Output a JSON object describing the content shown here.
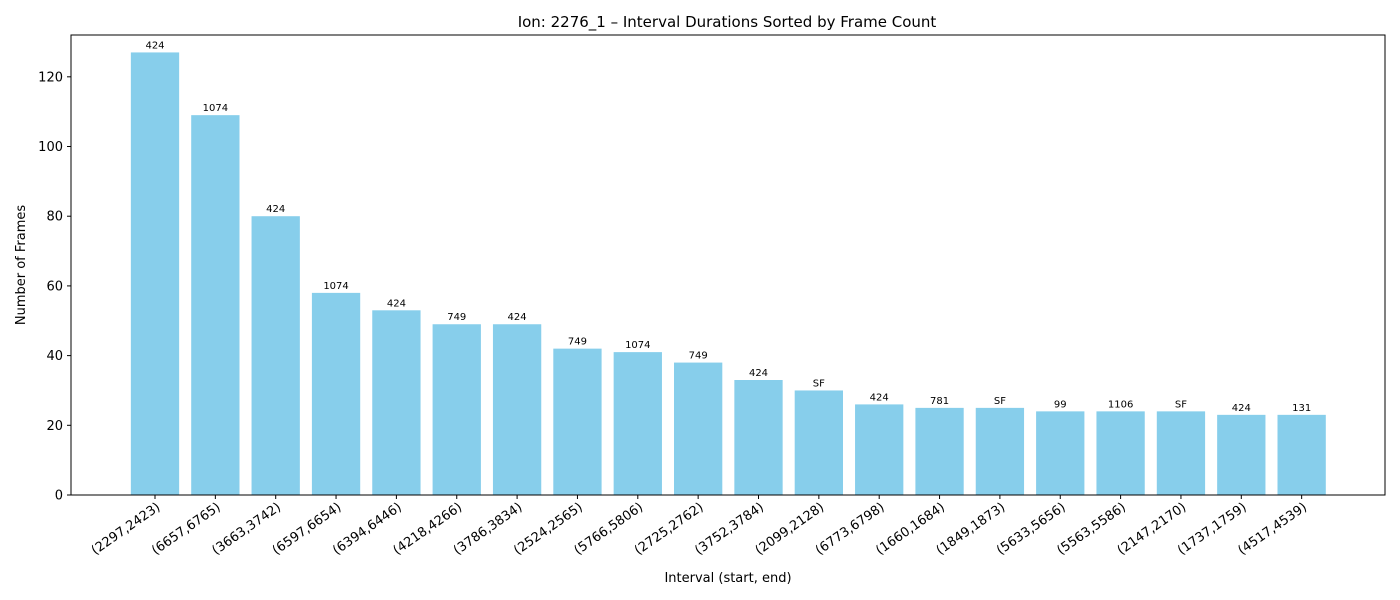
{
  "chart_data": {
    "type": "bar",
    "title": "Ion: 2276_1 – Interval Durations Sorted by Frame Count",
    "xlabel": "Interval (start, end)",
    "ylabel": "Number of Frames",
    "ylim": [
      0,
      132
    ],
    "yticks": [
      0,
      20,
      40,
      60,
      80,
      100,
      120
    ],
    "bar_color": "#87ceeb",
    "grid": false,
    "categories": [
      "(2297,2423)",
      "(6657,6765)",
      "(3663,3742)",
      "(6597,6654)",
      "(6394,6446)",
      "(4218,4266)",
      "(3786,3834)",
      "(2524,2565)",
      "(5766,5806)",
      "(2725,2762)",
      "(3752,3784)",
      "(2099,2128)",
      "(6773,6798)",
      "(1660,1684)",
      "(1849,1873)",
      "(5633,5656)",
      "(5563,5586)",
      "(2147,2170)",
      "(1737,1759)",
      "(4517,4539)"
    ],
    "values": [
      127,
      109,
      80,
      58,
      53,
      49,
      49,
      42,
      41,
      38,
      33,
      30,
      26,
      25,
      25,
      24,
      24,
      24,
      23,
      23
    ],
    "bar_labels": [
      "424",
      "1074",
      "424",
      "1074",
      "424",
      "749",
      "424",
      "749",
      "1074",
      "749",
      "424",
      "SF",
      "424",
      "781",
      "SF",
      "99",
      "1106",
      "SF",
      "424",
      "131"
    ]
  }
}
